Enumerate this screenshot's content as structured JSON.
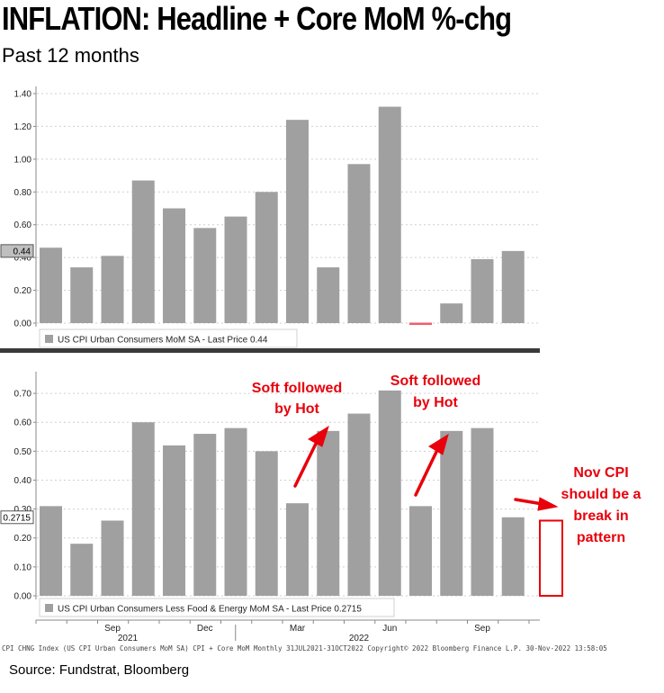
{
  "title": "INFLATION: Headline + Core MoM %-chg",
  "subtitle": "Past 12 months",
  "source": "Source: Fundstrat, Bloomberg",
  "footer_note": "CPI CHNG Index (US CPI Urban Consumers MoM SA) CPI + Core MoM  Monthly 31JUL2021-31OCT2022  Copyright© 2022 Bloomberg Finance L.P.  30-Nov-2022 13:58:05",
  "colors": {
    "bar": "#a0a0a0",
    "negative_bar": "#f25c6e",
    "annotation": "#e8000b",
    "divider": "#3a3a3a"
  },
  "chart_data": [
    {
      "type": "bar",
      "panel": "top",
      "series": [
        {
          "name": "US CPI Urban Consumers MoM SA - Last Price 0.44",
          "values": [
            0.46,
            0.34,
            0.41,
            0.87,
            0.7,
            0.58,
            0.65,
            0.8,
            1.24,
            0.34,
            0.97,
            1.32,
            -0.01,
            0.12,
            0.39,
            0.44
          ]
        }
      ],
      "ylim": [
        0,
        1.4
      ],
      "yticks": [
        "0.00",
        "0.20",
        "0.40",
        "0.60",
        "0.80",
        "1.00",
        "1.20",
        "1.40"
      ],
      "last_price_label": "0.44",
      "last_price_value": 0.44,
      "legend_position": "bottom-left"
    },
    {
      "type": "bar",
      "panel": "bottom",
      "series": [
        {
          "name": "US CPI Urban Consumers Less Food & Energy MoM SA - Last Price 0.2715",
          "values": [
            0.31,
            0.18,
            0.26,
            0.6,
            0.52,
            0.56,
            0.58,
            0.5,
            0.32,
            0.57,
            0.63,
            0.71,
            0.31,
            0.57,
            0.58,
            0.2715
          ]
        }
      ],
      "ylim": [
        0,
        0.75
      ],
      "yticks": [
        "0.00",
        "0.10",
        "0.20",
        "0.30",
        "0.40",
        "0.50",
        "0.60",
        "0.70"
      ],
      "last_price_label": "0.2715",
      "last_price_value": 0.2715,
      "legend_position": "bottom-left",
      "placeholder_bar": {
        "label": "Nov CPI",
        "value": 0.26
      }
    }
  ],
  "x_axis": {
    "month_ticks": [
      {
        "label": "Sep",
        "index": 2
      },
      {
        "label": "Dec",
        "index": 5
      },
      {
        "label": "Mar",
        "index": 8
      },
      {
        "label": "Jun",
        "index": 11
      },
      {
        "label": "Sep",
        "index": 14
      }
    ],
    "year_labels": [
      {
        "label": "2021",
        "index": 2
      },
      {
        "label": "2022",
        "index": 10
      }
    ]
  },
  "annotations": {
    "a1": {
      "line1": "Soft followed",
      "line2": "by Hot"
    },
    "a2": {
      "line1": "Soft followed",
      "line2": "by Hot"
    },
    "a3": {
      "line1": "Nov CPI",
      "line2": "should be a",
      "line3": "break in",
      "line4": "pattern"
    }
  }
}
